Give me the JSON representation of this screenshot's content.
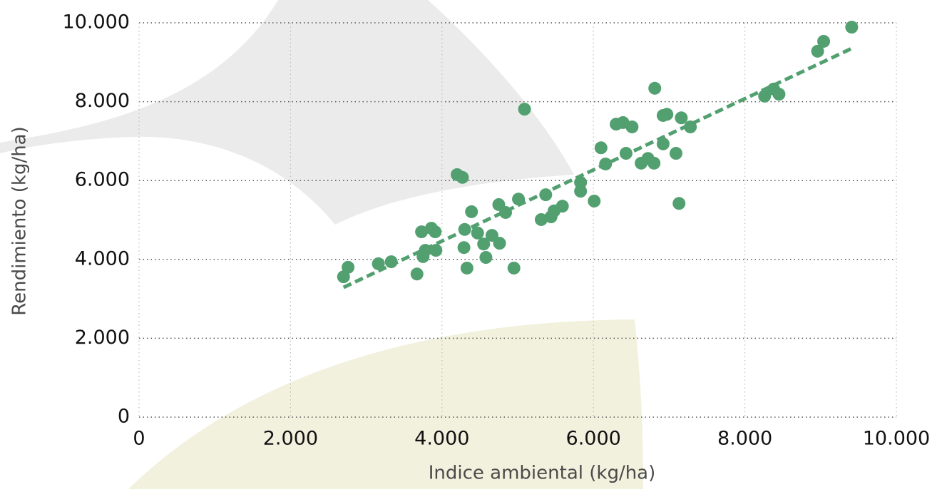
{
  "chart_data": {
    "type": "scatter",
    "x_label": "Indice ambiental (kg/ha)",
    "y_label": "Rendimiento (kg/ha)",
    "color": "#52a070",
    "grid": true,
    "xlim": [
      0,
      10000
    ],
    "ylim": [
      0,
      10000
    ],
    "xticks": [
      0,
      {
        "value": 2000,
        "label": "2.000"
      },
      {
        "value": 4000,
        "label": "4.000"
      },
      {
        "value": 6000,
        "label": "6.000"
      },
      {
        "value": 8000,
        "label": "8.000"
      },
      {
        "value": 10000,
        "label": "10.000"
      }
    ],
    "yticks": [
      0,
      {
        "value": 2000,
        "label": "2.000"
      },
      {
        "value": 4000,
        "label": "4.000"
      },
      {
        "value": 6000,
        "label": "6.000"
      },
      {
        "value": 8000,
        "label": "8.000"
      },
      {
        "value": 10000,
        "label": "10.000"
      }
    ],
    "x": [
      2700,
      2760,
      3160,
      3330,
      3670,
      3730,
      3750,
      3780,
      3860,
      3910,
      3920,
      4200,
      4270,
      4290,
      4300,
      4330,
      4390,
      4470,
      4550,
      4580,
      4660,
      4750,
      4760,
      4840,
      4950,
      5010,
      5090,
      5310,
      5370,
      5440,
      5480,
      5590,
      5830,
      5830,
      6010,
      6100,
      6160,
      6300,
      6390,
      6430,
      6510,
      6630,
      6720,
      6800,
      6810,
      6920,
      6920,
      6970,
      7090,
      7130,
      7160,
      7280,
      8260,
      8380,
      8450,
      8960,
      9040,
      9410
    ],
    "y": [
      3560,
      3800,
      3890,
      3940,
      3630,
      4700,
      4070,
      4230,
      4790,
      4700,
      4230,
      6150,
      6080,
      4300,
      4760,
      3780,
      5210,
      4670,
      4390,
      4050,
      4610,
      5390,
      4410,
      5190,
      3780,
      5530,
      7810,
      5010,
      5640,
      5080,
      5230,
      5350,
      5950,
      5730,
      5480,
      6830,
      6420,
      7430,
      7470,
      6690,
      7360,
      6440,
      6560,
      6440,
      8340,
      7650,
      6930,
      7680,
      6690,
      5420,
      7590,
      7360,
      8140,
      8320,
      8190,
      9280,
      9530,
      9890
    ],
    "trendline": {
      "x": [
        2700,
        9410
      ],
      "y": [
        3290,
        9350
      ],
      "color": "#52a070"
    }
  }
}
